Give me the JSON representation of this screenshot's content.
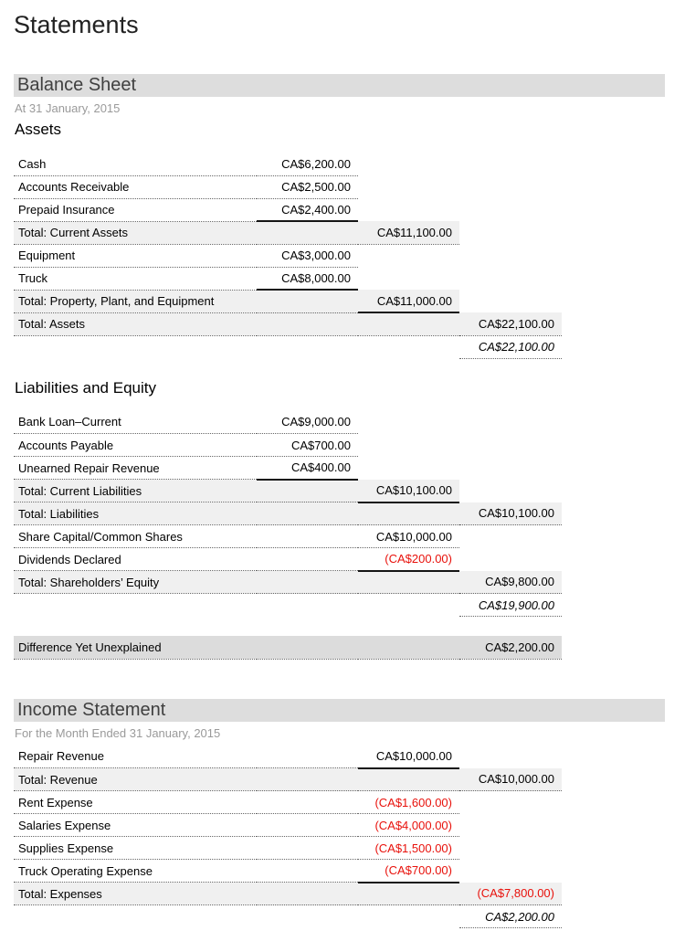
{
  "page": {
    "title": "Statements"
  },
  "colors": {
    "negative_amount": "#e8110b",
    "total_row_bg": "#f0f0f0",
    "section_bar_bg": "#dddddd",
    "difference_row_bg": "#dcdcdc"
  },
  "balance_sheet": {
    "title": "Balance Sheet",
    "subtitle": "At 31 January, 2015",
    "blocks": [
      {
        "heading": "Assets",
        "rows": [
          {
            "label": "Cash",
            "amount": "CA$6,200.00",
            "col": 1,
            "variant": "detail",
            "red": false,
            "rule": false
          },
          {
            "label": "Accounts Receivable",
            "amount": "CA$2,500.00",
            "col": 1,
            "variant": "detail",
            "red": false,
            "rule": false
          },
          {
            "label": "Prepaid Insurance",
            "amount": "CA$2,400.00",
            "col": 1,
            "variant": "detail",
            "red": false,
            "rule": true
          },
          {
            "label": "Total: Current Assets",
            "amount": "CA$11,100.00",
            "col": 2,
            "variant": "total",
            "red": false,
            "rule": false
          },
          {
            "label": "Equipment",
            "amount": "CA$3,000.00",
            "col": 1,
            "variant": "detail",
            "red": false,
            "rule": false
          },
          {
            "label": "Truck",
            "amount": "CA$8,000.00",
            "col": 1,
            "variant": "detail",
            "red": false,
            "rule": true
          },
          {
            "label": "Total: Property, Plant, and Equipment",
            "amount": "CA$11,000.00",
            "col": 2,
            "variant": "total",
            "red": false,
            "rule": true
          },
          {
            "label": "Total: Assets",
            "amount": "CA$22,100.00",
            "col": 3,
            "variant": "total",
            "red": false,
            "rule": false
          },
          {
            "label": "",
            "amount": "CA$22,100.00",
            "col": 3,
            "variant": "grand",
            "red": false,
            "rule": false
          }
        ]
      },
      {
        "heading": "Liabilities and Equity",
        "rows": [
          {
            "label": "Bank Loan–Current",
            "amount": "CA$9,000.00",
            "col": 1,
            "variant": "detail",
            "red": false,
            "rule": false
          },
          {
            "label": "Accounts Payable",
            "amount": "CA$700.00",
            "col": 1,
            "variant": "detail",
            "red": false,
            "rule": false
          },
          {
            "label": "Unearned Repair Revenue",
            "amount": "CA$400.00",
            "col": 1,
            "variant": "detail",
            "red": false,
            "rule": true
          },
          {
            "label": "Total: Current Liabilities",
            "amount": "CA$10,100.00",
            "col": 2,
            "variant": "total",
            "red": false,
            "rule": true
          },
          {
            "label": "Total: Liabilities",
            "amount": "CA$10,100.00",
            "col": 3,
            "variant": "total",
            "red": false,
            "rule": false
          },
          {
            "label": "Share Capital/Common Shares",
            "amount": "CA$10,000.00",
            "col": 2,
            "variant": "detail",
            "red": false,
            "rule": false
          },
          {
            "label": "Dividends Declared",
            "amount": "(CA$200.00)",
            "col": 2,
            "variant": "detail",
            "red": true,
            "rule": true
          },
          {
            "label": "Total: Shareholders’ Equity",
            "amount": "CA$9,800.00",
            "col": 3,
            "variant": "total",
            "red": false,
            "rule": false
          },
          {
            "label": "",
            "amount": "CA$19,900.00",
            "col": 3,
            "variant": "grand",
            "red": false,
            "rule": false
          }
        ]
      }
    ]
  },
  "difference": {
    "rows": [
      {
        "label": "Difference Yet Unexplained",
        "amount": "CA$2,200.00",
        "col": 3,
        "variant": "difference",
        "red": false,
        "rule": false
      }
    ]
  },
  "income_statement": {
    "title": "Income Statement",
    "subtitle": "For the Month Ended 31 January, 2015",
    "blocks": [
      {
        "heading": "",
        "rows": [
          {
            "label": "Repair Revenue",
            "amount": "CA$10,000.00",
            "col": 2,
            "variant": "detail",
            "red": false,
            "rule": true
          },
          {
            "label": "Total: Revenue",
            "amount": "CA$10,000.00",
            "col": 3,
            "variant": "total",
            "red": false,
            "rule": false
          },
          {
            "label": "Rent Expense",
            "amount": "(CA$1,600.00)",
            "col": 2,
            "variant": "detail",
            "red": true,
            "rule": false
          },
          {
            "label": "Salaries Expense",
            "amount": "(CA$4,000.00)",
            "col": 2,
            "variant": "detail",
            "red": true,
            "rule": false
          },
          {
            "label": "Supplies Expense",
            "amount": "(CA$1,500.00)",
            "col": 2,
            "variant": "detail",
            "red": true,
            "rule": false
          },
          {
            "label": "Truck Operating Expense",
            "amount": "(CA$700.00)",
            "col": 2,
            "variant": "detail",
            "red": true,
            "rule": true
          },
          {
            "label": "Total: Expenses",
            "amount": "(CA$7,800.00)",
            "col": 3,
            "variant": "total",
            "red": true,
            "rule": false
          },
          {
            "label": "",
            "amount": "CA$2,200.00",
            "col": 3,
            "variant": "grand",
            "red": false,
            "rule": false
          }
        ]
      }
    ]
  }
}
